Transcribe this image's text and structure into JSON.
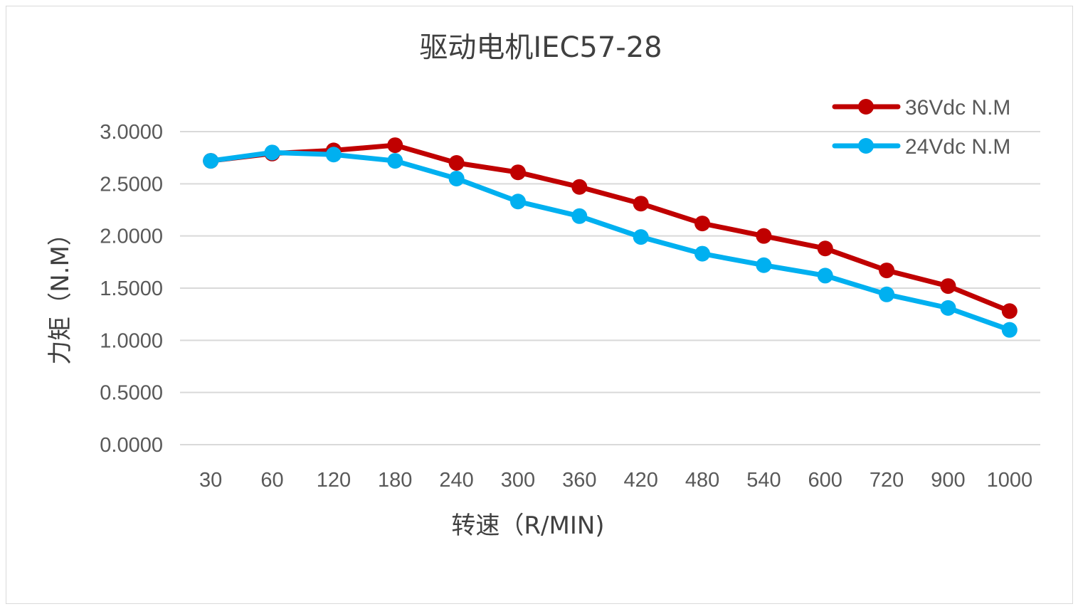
{
  "chart_data": {
    "type": "line",
    "title": "驱动电机IEC57-28",
    "xlabel": "转速（R/MIN)",
    "ylabel": "力矩（N.M）",
    "categories": [
      "30",
      "60",
      "120",
      "180",
      "240",
      "300",
      "360",
      "420",
      "480",
      "540",
      "600",
      "720",
      "900",
      "1000"
    ],
    "ylim": [
      0,
      3
    ],
    "yticks": [
      0,
      0.5,
      1.0,
      1.5,
      2.0,
      2.5,
      3.0
    ],
    "ytick_labels": [
      "0.0000",
      "0.5000",
      "1.0000",
      "1.5000",
      "2.0000",
      "2.5000",
      "3.0000"
    ],
    "grid": true,
    "legend_position": "top-right",
    "series": [
      {
        "name": "36Vdc N.M",
        "color": "#c00000",
        "values": [
          2.72,
          2.79,
          2.82,
          2.87,
          2.7,
          2.61,
          2.47,
          2.31,
          2.12,
          2.0,
          1.88,
          1.67,
          1.52,
          1.28
        ]
      },
      {
        "name": "24Vdc N.M",
        "color": "#00b0f0",
        "values": [
          2.72,
          2.8,
          2.78,
          2.72,
          2.55,
          2.33,
          2.19,
          1.99,
          1.83,
          1.72,
          1.62,
          1.44,
          1.31,
          1.1
        ]
      }
    ]
  }
}
